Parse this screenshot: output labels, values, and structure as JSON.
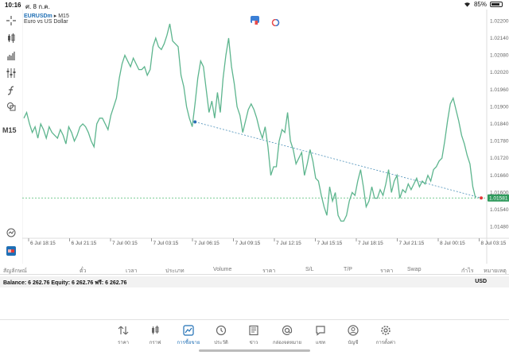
{
  "status_bar": {
    "time": "10:16",
    "date": "ศ. 8 ก.ค.",
    "battery": "85%",
    "battery_level": 0.85
  },
  "symbol": {
    "name": "EURUSDm",
    "separator": "▸",
    "timeframe": "M15",
    "description": "Euro vs US Dollar"
  },
  "toolbar": {
    "timeframe_label": "M15",
    "icons": [
      "crosshair-icon",
      "candles-icon",
      "bars-icon",
      "indicators-icon",
      "function-icon",
      "objects-icon"
    ]
  },
  "colors": {
    "line": "#5db58e",
    "trendline": "#4a8fb8",
    "bid_line": "#4cbb6f",
    "price_badge": "#2f9a5c",
    "accent": "#1f6fb5"
  },
  "chart_data": {
    "type": "line",
    "ylim": [
      1.0144,
      1.0224
    ],
    "y_ticks": [
      "1.02200",
      "1.02140",
      "1.02080",
      "1.02020",
      "1.01960",
      "1.01900",
      "1.01840",
      "1.01780",
      "1.01720",
      "1.01660",
      "1.01600",
      "1.01540",
      "1.01480"
    ],
    "y_tick_values": [
      1.022,
      1.0214,
      1.0208,
      1.0202,
      1.0196,
      1.019,
      1.0184,
      1.0178,
      1.0172,
      1.0166,
      1.016,
      1.0154,
      1.0148
    ],
    "x_ticks": [
      "6 Jul 18:15",
      "6 Jul 21:15",
      "7 Jul 00:15",
      "7 Jul 03:15",
      "7 Jul 06:15",
      "7 Jul 09:15",
      "7 Jul 12:15",
      "7 Jul 15:15",
      "7 Jul 18:15",
      "7 Jul 21:15",
      "8 Jul 00:15",
      "8 Jul 03:15"
    ],
    "current_price": "1.01581",
    "current_price_value": 1.01581,
    "series": [
      {
        "values": [
          1.0186,
          1.0188,
          1.0184,
          1.0181,
          1.0183,
          1.0179,
          1.0184,
          1.0182,
          1.0179,
          1.0183,
          1.0181,
          1.018,
          1.0179,
          1.0182,
          1.018,
          1.0177,
          1.0183,
          1.0181,
          1.0178,
          1.018,
          1.0183,
          1.0184,
          1.0183,
          1.0181,
          1.0178,
          1.0176,
          1.0184,
          1.0186,
          1.0186,
          1.0184,
          1.0182,
          1.0187,
          1.019,
          1.0193,
          1.02,
          1.0205,
          1.0208,
          1.0206,
          1.0204,
          1.0207,
          1.0205,
          1.0203,
          1.0203,
          1.0204,
          1.0201,
          1.0203,
          1.0211,
          1.0214,
          1.0211,
          1.021,
          1.0212,
          1.0215,
          1.0219,
          1.0213,
          1.0212,
          1.0211,
          1.0201,
          1.0197,
          1.019,
          1.0186,
          1.0183,
          1.0191,
          1.02,
          1.0206,
          1.0204,
          1.0196,
          1.0188,
          1.0192,
          1.0186,
          1.0195,
          1.0188,
          1.02,
          1.0208,
          1.0214,
          1.0204,
          1.0198,
          1.019,
          1.0187,
          1.0181,
          1.0185,
          1.0189,
          1.0191,
          1.0189,
          1.0186,
          1.0182,
          1.0179,
          1.0183,
          1.0176,
          1.0166,
          1.0169,
          1.0169,
          1.0178,
          1.0182,
          1.0181,
          1.0188,
          1.0178,
          1.0175,
          1.017,
          1.0172,
          1.0174,
          1.0166,
          1.017,
          1.0175,
          1.0171,
          1.0165,
          1.0164,
          1.0159,
          1.0155,
          1.0152,
          1.0162,
          1.0157,
          1.016,
          1.0152,
          1.015,
          1.015,
          1.0152,
          1.0157,
          1.016,
          1.0159,
          1.0164,
          1.0168,
          1.0162,
          1.0155,
          1.0157,
          1.0162,
          1.0158,
          1.0158,
          1.0161,
          1.0159,
          1.0163,
          1.0168,
          1.016,
          1.0164,
          1.0166,
          1.0158,
          1.0161,
          1.016,
          1.0163,
          1.0161,
          1.0163,
          1.0165,
          1.0162,
          1.0164,
          1.0163,
          1.0166,
          1.0164,
          1.0168,
          1.0169,
          1.0171,
          1.0172,
          1.0178,
          1.0185,
          1.0191,
          1.0193,
          1.0189,
          1.0185,
          1.018,
          1.0177,
          1.0173,
          1.017,
          1.0162,
          1.0158
        ]
      }
    ],
    "trendline": {
      "start_index": 61,
      "start_value": 1.01847,
      "end_index": 163,
      "end_value": 1.01581
    },
    "grid": false,
    "legend": "none"
  },
  "columns": {
    "symbol": "สัญลักษณ์",
    "ticket": "ตั๋ว",
    "time": "เวลา",
    "type": "ประเภท",
    "volume": "Volume",
    "price": "ราคา",
    "sl": "S/L",
    "tp": "T/P",
    "price2": "ราคา",
    "swap": "Swap",
    "profit": "กำไร",
    "comment": "หมายเหตุ"
  },
  "balance": {
    "text": "Balance: 6 262.76 Equity: 6 262.76 ฟรี: 6 262.76",
    "currency": "USD"
  },
  "tabs": [
    {
      "label": "ราคา",
      "icon": "quotes-icon"
    },
    {
      "label": "กราฟ",
      "icon": "chart-icon"
    },
    {
      "label": "การซื้อขาย",
      "icon": "trade-icon"
    },
    {
      "label": "ประวัติ",
      "icon": "history-icon"
    },
    {
      "label": "ข่าว",
      "icon": "news-icon"
    },
    {
      "label": "กล่องจดหมาย",
      "icon": "mailbox-icon"
    },
    {
      "label": "แชท",
      "icon": "chat-icon"
    },
    {
      "label": "บัญชี",
      "icon": "account-icon"
    },
    {
      "label": "การตั้งค่า",
      "icon": "settings-icon"
    }
  ],
  "active_tab": 2
}
